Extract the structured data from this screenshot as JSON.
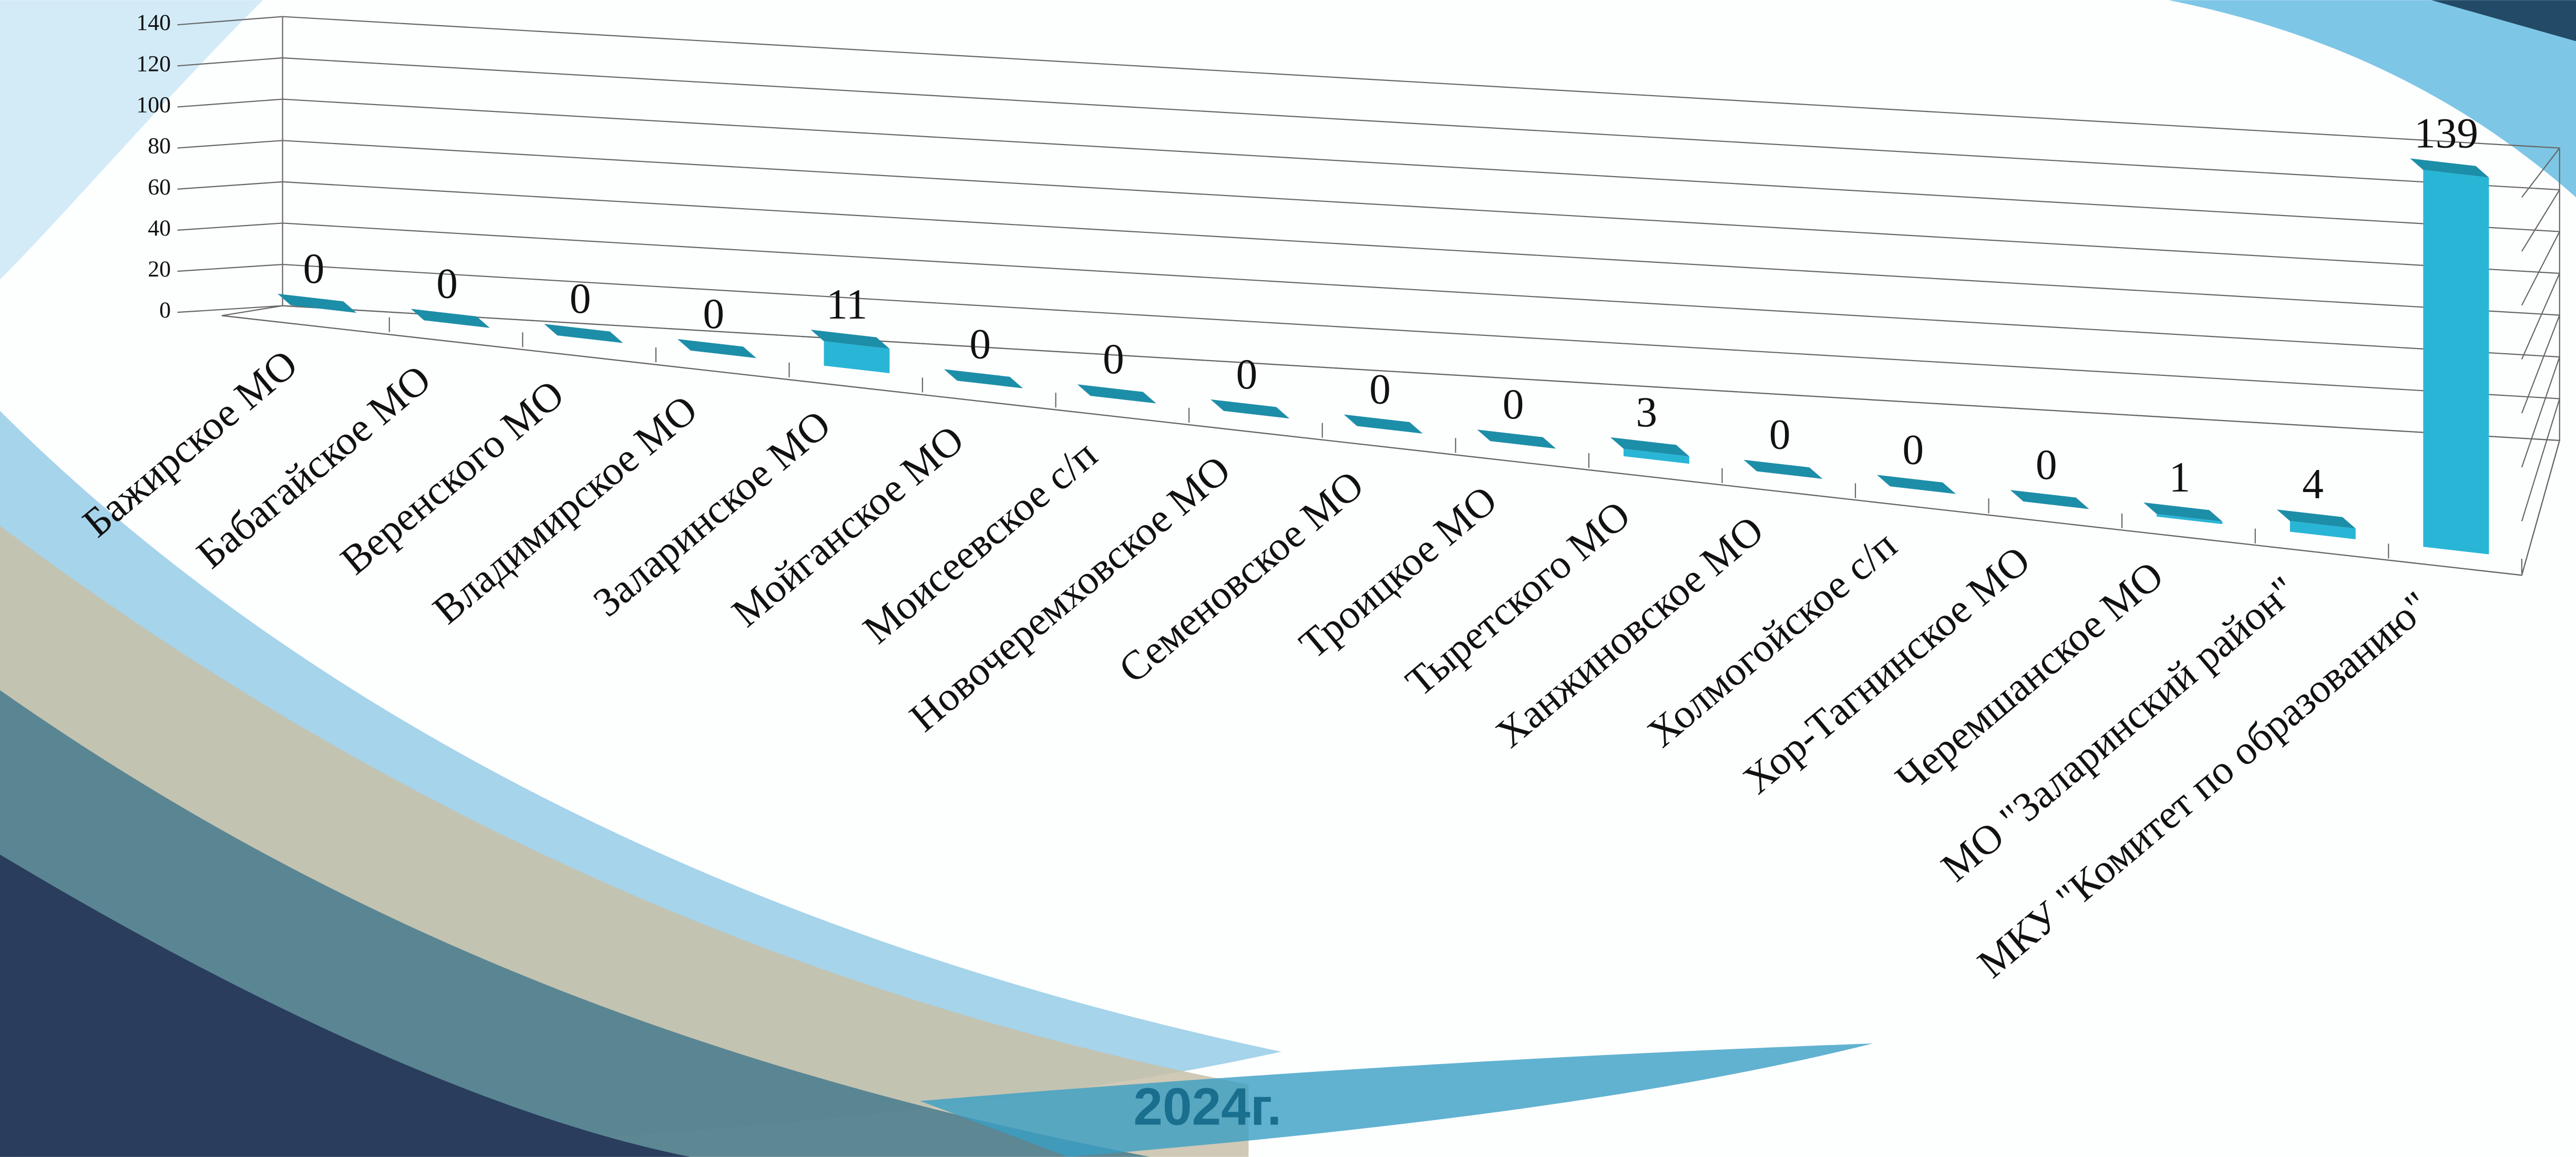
{
  "chart_data": {
    "type": "bar3d",
    "categories": [
      "Бажирское МО",
      "Бабагайское МО",
      "Веренского МО",
      "Владимирское МО",
      "Заларинское МО",
      "Мойганское МО",
      "Моисеевское с/п",
      "Новочеремховское МО",
      "Семеновское МО",
      "Троицкое МО",
      "Тыретского МО",
      "Ханжиновское  МО",
      "Холмогойское с/п",
      "Хор-Тагнинское МО",
      "Черемшанское МО",
      "МО \"Заларинский район\"",
      "МКУ \"Комитет по образованию\""
    ],
    "values": [
      0,
      0,
      0,
      0,
      11,
      0,
      0,
      0,
      0,
      0,
      3,
      0,
      0,
      0,
      1,
      4,
      139
    ],
    "color": "#29b6d6",
    "ylim": [
      0,
      140
    ],
    "yticks": [
      0,
      20,
      40,
      60,
      80,
      100,
      120,
      140
    ],
    "grid": true,
    "annotation": "2024г."
  }
}
